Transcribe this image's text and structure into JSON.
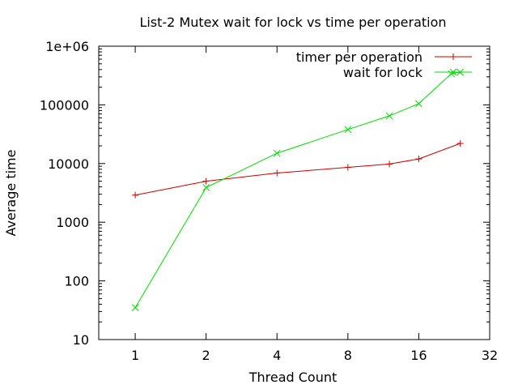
{
  "chart_data": {
    "type": "line",
    "title": "List-2 Mutex wait for lock vs time per operation",
    "xlabel": "Thread Count",
    "ylabel": "Average time",
    "x_scale": "log2",
    "y_scale": "log10",
    "xlim": [
      0.7,
      32
    ],
    "ylim": [
      10,
      1000000
    ],
    "x_ticks": [
      1,
      2,
      4,
      8,
      16,
      32
    ],
    "x_tick_labels": [
      "1",
      "2",
      "4",
      "8",
      "16",
      "32"
    ],
    "y_ticks": [
      10,
      100,
      1000,
      10000,
      100000,
      1000000
    ],
    "y_tick_labels": [
      "10",
      "100",
      "1000",
      "10000",
      "100000",
      "1e+06"
    ],
    "grid": false,
    "legend_position": "top-right",
    "series": [
      {
        "name": "timer per operation",
        "color": "#cc0000",
        "marker": "plus",
        "x": [
          1,
          2,
          4,
          8,
          12,
          16,
          24
        ],
        "y": [
          2900,
          5000,
          6900,
          8600,
          9800,
          12000,
          22000
        ]
      },
      {
        "name": "wait for lock",
        "color": "#00dd00",
        "marker": "cross",
        "x": [
          1,
          2,
          4,
          8,
          12,
          16,
          22,
          24
        ],
        "y": [
          35,
          3900,
          15000,
          38000,
          65000,
          105000,
          340000,
          360000
        ]
      }
    ]
  }
}
